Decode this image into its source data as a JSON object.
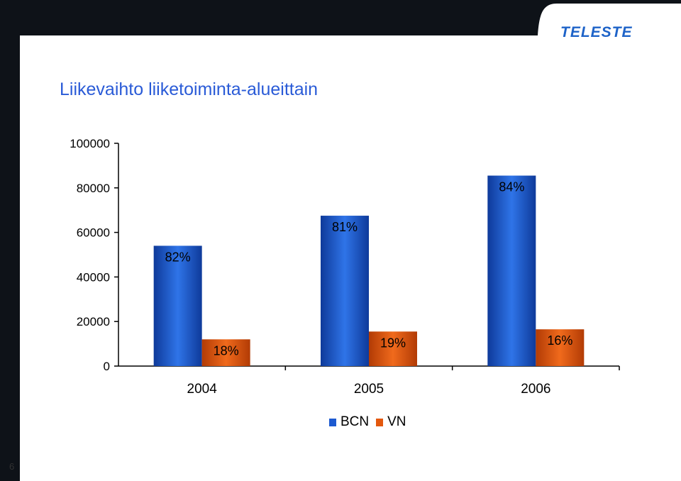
{
  "header": {
    "logo_text": "TELESTE",
    "title": "Liikevaihto liiketoiminta-alueittain"
  },
  "footer": {
    "page_number": "6"
  },
  "colors": {
    "bcn": "#1d5ad0",
    "vn": "#e3580e",
    "title": "#2a5bd7",
    "band": "#0e1218",
    "logo": "#1e63c8"
  },
  "chart_data": {
    "type": "bar",
    "title": "",
    "xlabel": "",
    "ylabel": "",
    "ylim": [
      0,
      100000
    ],
    "yticks": [
      "0",
      "20000",
      "40000",
      "60000",
      "80000",
      "100000"
    ],
    "categories": [
      "2004",
      "2005",
      "2006"
    ],
    "series": [
      {
        "name": "BCN",
        "values": [
          54000,
          67500,
          85500
        ],
        "labels": [
          "82%",
          "81%",
          "84%"
        ]
      },
      {
        "name": "VN",
        "values": [
          12000,
          15500,
          16500
        ],
        "labels": [
          "18%",
          "19%",
          "16%"
        ]
      }
    ],
    "legend": "bottom-center",
    "grid": false
  }
}
